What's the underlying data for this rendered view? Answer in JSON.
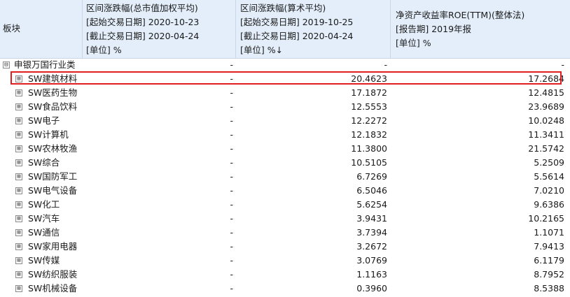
{
  "headers": {
    "col0": "板块",
    "col1": [
      "区间涨跌幅(总市值加权平均)",
      "[起始交易日期] 2020-10-23",
      "[截止交易日期] 2020-04-24",
      "[单位] %"
    ],
    "col2": [
      "区间涨跌幅(算术平均)",
      "[起始交易日期] 2019-10-25",
      "[截止交易日期] 2020-04-24",
      "[单位] %↓"
    ],
    "col3": [
      "净资产收益率ROE(TTM)(整体法)",
      "[报告期] 2019年报",
      "[单位] %"
    ]
  },
  "group": {
    "toggle": "⊟",
    "name": "申银万国行业类",
    "c1": "-",
    "c2": "-",
    "c3": "-"
  },
  "rows": [
    {
      "toggle": "⊞",
      "name": "SW建筑材料",
      "c1": "-",
      "c2": "20.4623",
      "c3": "17.2684",
      "highlighted": true
    },
    {
      "toggle": "⊞",
      "name": "SW医药生物",
      "c1": "-",
      "c2": "17.1872",
      "c3": "12.4815"
    },
    {
      "toggle": "⊞",
      "name": "SW食品饮料",
      "c1": "-",
      "c2": "12.5553",
      "c3": "23.9689"
    },
    {
      "toggle": "⊞",
      "name": "SW电子",
      "c1": "-",
      "c2": "12.2272",
      "c3": "10.0248"
    },
    {
      "toggle": "⊞",
      "name": "SW计算机",
      "c1": "-",
      "c2": "12.1832",
      "c3": "11.3411"
    },
    {
      "toggle": "⊞",
      "name": "SW农林牧渔",
      "c1": "-",
      "c2": "11.3800",
      "c3": "21.5742"
    },
    {
      "toggle": "⊞",
      "name": "SW综合",
      "c1": "-",
      "c2": "10.5105",
      "c3": "5.2509"
    },
    {
      "toggle": "⊞",
      "name": "SW国防军工",
      "c1": "-",
      "c2": "6.7269",
      "c3": "5.5614"
    },
    {
      "toggle": "⊞",
      "name": "SW电气设备",
      "c1": "-",
      "c2": "6.5046",
      "c3": "7.0210"
    },
    {
      "toggle": "⊞",
      "name": "SW化工",
      "c1": "-",
      "c2": "5.6254",
      "c3": "9.6386"
    },
    {
      "toggle": "⊞",
      "name": "SW汽车",
      "c1": "-",
      "c2": "3.9431",
      "c3": "10.2165"
    },
    {
      "toggle": "⊞",
      "name": "SW通信",
      "c1": "-",
      "c2": "3.7394",
      "c3": "1.1071"
    },
    {
      "toggle": "⊞",
      "name": "SW家用电器",
      "c1": "-",
      "c2": "3.2672",
      "c3": "7.9413"
    },
    {
      "toggle": "⊞",
      "name": "SW传媒",
      "c1": "-",
      "c2": "3.0769",
      "c3": "6.1179"
    },
    {
      "toggle": "⊞",
      "name": "SW纺织服装",
      "c1": "-",
      "c2": "1.1163",
      "c3": "8.7952"
    },
    {
      "toggle": "⊞",
      "name": "SW机械设备",
      "c1": "-",
      "c2": "0.3960",
      "c3": "8.5388"
    }
  ],
  "watermark": "",
  "colors": {
    "header_bg": "#e3eefa",
    "highlight_border": "#e02020"
  }
}
